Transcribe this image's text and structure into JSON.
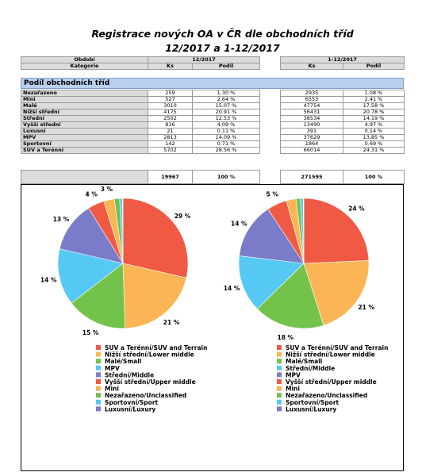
{
  "title_line1": "Registrace nových OA v ČR dle obchodních tříd",
  "title_line2": "12/2017 a 1-12/2017",
  "header": {
    "obdobi_label": "Období",
    "kategorie_label": "Kategorie",
    "period1": "12/2017",
    "period2": "1-12/2017",
    "ks": "Ks",
    "podil": "Podíl"
  },
  "section_title": "Podíl obchodních tříd",
  "rows": [
    {
      "name": "Nezařazeno",
      "ks1": "259",
      "p1": "1.30 %",
      "ks2": "2935",
      "p2": "1.08 %"
    },
    {
      "name": "Mini",
      "ks1": "527",
      "p1": "2.64 %",
      "ks2": "6553",
      "p2": "2.41 %"
    },
    {
      "name": "Malé",
      "ks1": "3010",
      "p1": "15.07 %",
      "ks2": "47754",
      "p2": "17.58 %"
    },
    {
      "name": "Nižší střední",
      "ks1": "4175",
      "p1": "20.91 %",
      "ks2": "56431",
      "p2": "20.78 %"
    },
    {
      "name": "Střední",
      "ks1": "2502",
      "p1": "12.53 %",
      "ks2": "38534",
      "p2": "14.19 %"
    },
    {
      "name": "Vyšší střední",
      "ks1": "816",
      "p1": "4.09 %",
      "ks2": "13490",
      "p2": "4.97 %"
    },
    {
      "name": "Luxusní",
      "ks1": "21",
      "p1": "0.11 %",
      "ks2": "391",
      "p2": "0.14 %"
    },
    {
      "name": "MPV",
      "ks1": "2813",
      "p1": "14.09 %",
      "ks2": "37629",
      "p2": "13.85 %"
    },
    {
      "name": "Sportovní",
      "ks1": "142",
      "p1": "0.71 %",
      "ks2": "1864",
      "p2": "0.69 %"
    },
    {
      "name": "SUV a Terénní",
      "ks1": "5702",
      "p1": "28.56 %",
      "ks2": "66014",
      "p2": "24.31 %"
    }
  ],
  "totals": {
    "ks1": "19967",
    "p1": "100 %",
    "ks2": "271595",
    "p2": "100 %"
  },
  "colors": {
    "suv": "#f05a45",
    "nizsi": "#fbb555",
    "male": "#73c24a",
    "mpv": "#55c9f3",
    "stredni": "#7a7bc9",
    "vyssi": "#f05a45",
    "mini": "#fbb555",
    "nezarazeno": "#73c24a",
    "sport": "#55c9f3",
    "lux": "#7a7bc9"
  },
  "chart_data": [
    {
      "type": "pie",
      "period": "12/2017",
      "labels": [
        "SUV a Terénní/SUV and Terrain",
        "Nižší střední/Lower middle",
        "Malé/Small",
        "MPV",
        "Střední/Middle",
        "Vyšší střední/Upper middle",
        "Mini",
        "Nezařazeno/Unclassified",
        "Sportovní/Sport",
        "Luxusní/Luxury"
      ],
      "values": [
        28.56,
        20.91,
        15.07,
        14.09,
        12.53,
        4.09,
        2.64,
        1.3,
        0.71,
        0.11
      ],
      "data_labels": [
        "29 %",
        "21 %",
        "15 %",
        "14 %",
        "13 %",
        "4 %",
        "3 %",
        "",
        "",
        ""
      ]
    },
    {
      "type": "pie",
      "period": "1-12/2017",
      "labels": [
        "SUV a Terénní/SUV and Terrain",
        "Nižší střední/Lower middle",
        "Malé/Small",
        "Střední/Middle",
        "MPV",
        "Vyšší střední/Upper middle",
        "Mini",
        "Nezařazeno/Unclassified",
        "Sportovní/Sport",
        "Luxusní/Luxury"
      ],
      "values": [
        24.31,
        20.78,
        17.58,
        14.19,
        13.85,
        4.97,
        2.41,
        1.08,
        0.69,
        0.14
      ],
      "data_labels": [
        "24 %",
        "21 %",
        "18 %",
        "14 %",
        "14 %",
        "5 %",
        "",
        "",
        "",
        ""
      ]
    }
  ]
}
